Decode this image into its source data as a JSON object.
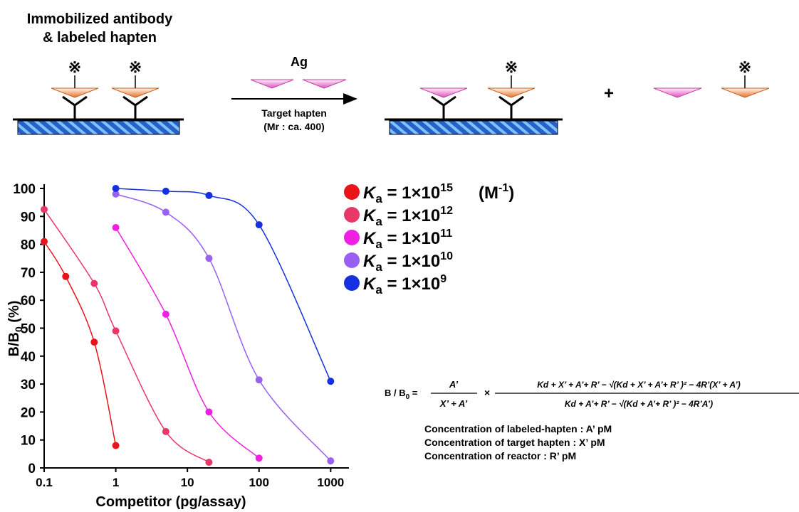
{
  "diagram": {
    "left_label": [
      "Immobilized antibody",
      "& labeled hapten"
    ],
    "label_mark": "※",
    "arrow_top": "Ag",
    "arrow_bottom": [
      "Target hapten",
      "(Mr : ca. 400)"
    ],
    "plus": "+"
  },
  "formula": {
    "lhs": "B / B",
    "lhs_sub": "0",
    "lhs_eq": " =",
    "frac1_num": "A’",
    "frac1_den": "X’ + A’",
    "times": "×",
    "frac2_num": "Kd + X’ + A’+ R’ − √(Kd + X’ + A’+ R’ )² − 4R’(X’ + A’)",
    "frac2_den": "Kd + A’+ R’ − √(Kd + A’+ R’ )² − 4R’A’)",
    "notes": [
      "Concentration of labeled-hapten : A’ pM",
      "Concentration of target hapten : X’ pM",
      "Concentration of reactor : R’ pM"
    ]
  },
  "chart_data": {
    "type": "line",
    "x_label": "Competitor (pg/assay)",
    "y_label": {
      "text": "B/B",
      "sub": "0",
      "after": " (%)"
    },
    "xscale": "log",
    "xlim": [
      0.1,
      1800
    ],
    "xticks": [
      0.1,
      1,
      10,
      100,
      1000
    ],
    "ylim": [
      0,
      100
    ],
    "yticks": [
      0,
      10,
      20,
      30,
      40,
      50,
      60,
      70,
      80,
      90,
      100
    ],
    "legend_unit": {
      "text": "(M",
      "sup": "-1",
      "after": ")"
    },
    "series": [
      {
        "name": {
          "italic": "K",
          "sub": "a",
          "text": " = 1×10",
          "sup": "15"
        },
        "color": "#e8141a",
        "x": [
          0.1,
          0.2,
          0.5,
          1
        ],
        "values": [
          81,
          68.5,
          45,
          8
        ]
      },
      {
        "name": {
          "italic": "K",
          "sub": "a",
          "text": " = 1×10",
          "sup": "12"
        },
        "color": "#e8386a",
        "x": [
          0.1,
          0.5,
          1,
          5,
          20
        ],
        "values": [
          92.5,
          66,
          49,
          13,
          2
        ]
      },
      {
        "name": {
          "italic": "K",
          "sub": "a",
          "text": " = 1×10",
          "sup": "11"
        },
        "color": "#f020e0",
        "x": [
          1,
          5,
          20,
          100
        ],
        "values": [
          86,
          55,
          20,
          3.5
        ]
      },
      {
        "name": {
          "italic": "K",
          "sub": "a",
          "text": " = 1×10",
          "sup": "10"
        },
        "color": "#9a60f0",
        "x": [
          1,
          5,
          20,
          100,
          1000
        ],
        "values": [
          98,
          91.5,
          75,
          31.5,
          2.5
        ]
      },
      {
        "name": {
          "italic": "K",
          "sub": "a",
          "text": " = 1×10",
          "sup": "9"
        },
        "color": "#1530e0",
        "x": [
          1,
          5,
          20,
          100,
          1000
        ],
        "values": [
          100,
          99,
          97.5,
          87,
          31
        ]
      }
    ]
  }
}
